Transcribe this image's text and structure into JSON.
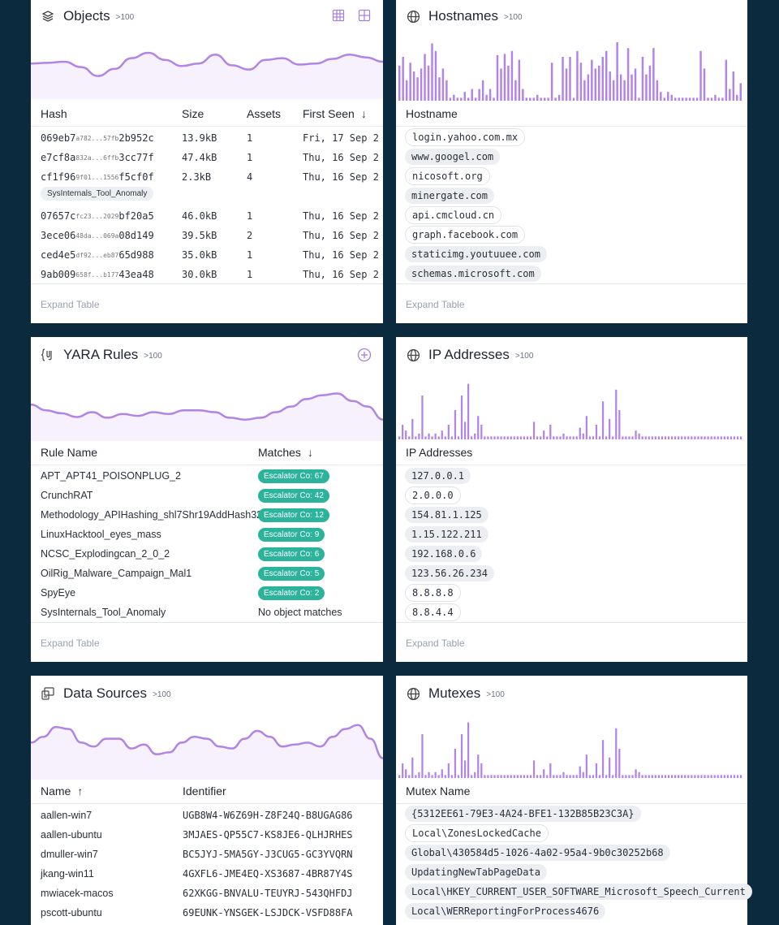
{
  "colors": {
    "accent": "#b184e6",
    "spark_fill": "#f6f1fc",
    "teal": "#2bb39b",
    "page_bg": "#0b2a3e"
  },
  "objects": {
    "title": "Objects",
    "count": ">100",
    "icons": [
      "layers-icon",
      "grid-icon",
      "grid-alt-icon"
    ],
    "columns": [
      "Hash",
      "Size",
      "Assets",
      "First Seen"
    ],
    "sort_column": "First Seen",
    "sort_dir": "down",
    "rows": [
      {
        "hash_pre": "069eb7",
        "hash_mid": "a782...57fb",
        "hash_post": "2b952c",
        "size": "13.9kB",
        "assets": "1",
        "first_seen": "Fri, 17 Sep 2",
        "tag": ""
      },
      {
        "hash_pre": "e7cf8a",
        "hash_mid": "832a...6ffb",
        "hash_post": "3cc77f",
        "size": "47.4kB",
        "assets": "1",
        "first_seen": "Thu, 16 Sep 2",
        "tag": ""
      },
      {
        "hash_pre": "cf1f96",
        "hash_mid": "9f01...1556",
        "hash_post": "f5cf0f",
        "size": "2.3kB",
        "assets": "4",
        "first_seen": "Thu, 16 Sep 2",
        "tag": "SysInternals_Tool_Anomaly"
      },
      {
        "hash_pre": "07657c",
        "hash_mid": "fc23...2029",
        "hash_post": "bf20a5",
        "size": "46.0kB",
        "assets": "1",
        "first_seen": "Thu, 16 Sep 2",
        "tag": ""
      },
      {
        "hash_pre": "3ece06",
        "hash_mid": "48da...069a",
        "hash_post": "08d149",
        "size": "39.5kB",
        "assets": "2",
        "first_seen": "Thu, 16 Sep 2",
        "tag": ""
      },
      {
        "hash_pre": "ced4e5",
        "hash_mid": "df92...eb87",
        "hash_post": "65d988",
        "size": "35.0kB",
        "assets": "1",
        "first_seen": "Thu, 16 Sep 2",
        "tag": ""
      },
      {
        "hash_pre": "9ab009",
        "hash_mid": "658f...b177",
        "hash_post": "43ea48",
        "size": "30.0kB",
        "assets": "1",
        "first_seen": "Thu, 16 Sep 2",
        "tag": ""
      }
    ],
    "expand": "Expand Table",
    "spark": [
      0.45,
      0.47,
      0.5,
      0.35,
      0.1,
      0.3,
      0.6,
      0.75,
      0.55,
      0.38,
      0.45,
      0.7,
      0.4,
      0.28,
      0.55,
      0.6,
      0.42,
      0.45,
      0.58,
      0.7,
      0.62,
      0.5
    ]
  },
  "hostnames": {
    "title": "Hostnames",
    "count": ">100",
    "icon": "globe-icon",
    "column": "Hostname",
    "items": [
      {
        "text": "login.yahoo.com.mx",
        "style": "outline"
      },
      {
        "text": "www.googel.com",
        "style": "filled"
      },
      {
        "text": "nicosoft.org",
        "style": "outline"
      },
      {
        "text": "minergate.com",
        "style": "filled"
      },
      {
        "text": "api.cmcloud.cn",
        "style": "outline"
      },
      {
        "text": "graph.facebook.com",
        "style": "outline"
      },
      {
        "text": "staticimg.youtuuee.com",
        "style": "filled"
      },
      {
        "text": "schemas.microsoft.com",
        "style": "filled"
      }
    ],
    "expand": "Expand Table",
    "bars": [
      0.6,
      0.75,
      0.35,
      0.65,
      0.5,
      0.4,
      0.55,
      0.8,
      0.6,
      0.98,
      0.85,
      0.4,
      0.55,
      0.35,
      0.05,
      0.1,
      0.05,
      0.05,
      0.15,
      0.05,
      0.2,
      0.05,
      0.2,
      0.35,
      0.1,
      0.2,
      0.05,
      0.78,
      0.55,
      0.8,
      0.6,
      0.85,
      0.35,
      0.7,
      0.2,
      0.05,
      0.05,
      0.05,
      0.1,
      0.05,
      0.05,
      0.05,
      0.65,
      0.05,
      0.1,
      0.75,
      0.55,
      0.75,
      0.05,
      0.85,
      0.65,
      0.35,
      0.45,
      0.7,
      0.55,
      0.6,
      0.75,
      0.85,
      0.5,
      0.35,
      1.0,
      0.45,
      0.35,
      0.9,
      0.45,
      0.55,
      0.05,
      0.75,
      0.45,
      0.6,
      0.9,
      0.35,
      0.15,
      0.05,
      0.15,
      0.1,
      0.05,
      0.05,
      0.05,
      0.05,
      0.05,
      0.05,
      0.05,
      0.85,
      0.55,
      0.05,
      0.05,
      0.1,
      0.05,
      0.05,
      0.7,
      0.2,
      0.5,
      0.1,
      0.3
    ]
  },
  "yara": {
    "title": "YARA Rules",
    "count": ">100",
    "icon": "yara-brackets-icon",
    "action_icon": "add-circle-icon",
    "columns": [
      "Rule Name",
      "Matches"
    ],
    "sort_column": "Matches",
    "sort_dir": "down",
    "rows": [
      {
        "name": "APT_APT41_POISONPLUG_2",
        "matches": "Escalator Co: 67"
      },
      {
        "name": "CrunchRAT",
        "matches": "Escalator Co: 42"
      },
      {
        "name": "Methodology_APIHashing_shl7Shr19AddHash32",
        "matches": "Escalator Co: 12"
      },
      {
        "name": "LinuxHacktool_eyes_mass",
        "matches": "Escalator Co: 9"
      },
      {
        "name": "NCSC_Explodingcan_2_0_2",
        "matches": "Escalator Co: 6"
      },
      {
        "name": "OilRig_Malware_Campaign_Mal1",
        "matches": "Escalator Co: 5"
      },
      {
        "name": "SpyEye",
        "matches": "Escalator Co: 2"
      },
      {
        "name": "SysInternals_Tool_Anomaly",
        "matches": "",
        "no_match": "No object matches"
      }
    ],
    "expand": "Expand Table",
    "spark": [
      0.45,
      0.3,
      0.22,
      0.12,
      0.25,
      0.1,
      0.2,
      0.15,
      0.25,
      0.2,
      0.3,
      0.3,
      0.25,
      0.1,
      0.05,
      0.1,
      0.25,
      0.4,
      0.6,
      0.7,
      0.75,
      0.55,
      0.4,
      0.05
    ]
  },
  "ip": {
    "title": "IP Addresses",
    "count": ">100",
    "icon": "globe-icon",
    "column": "IP Addresses",
    "items": [
      {
        "text": "127.0.0.1",
        "style": "filled"
      },
      {
        "text": "2.0.0.0",
        "style": "outline"
      },
      {
        "text": "154.81.1.125",
        "style": "filled"
      },
      {
        "text": "1.15.122.211",
        "style": "filled"
      },
      {
        "text": "192.168.0.6",
        "style": "filled"
      },
      {
        "text": "123.56.26.234",
        "style": "filled"
      },
      {
        "text": "8.8.8.8",
        "style": "outline"
      },
      {
        "text": "8.8.4.4",
        "style": "outline"
      }
    ],
    "expand": "Expand Table",
    "bars": [
      0.05,
      0.25,
      0.15,
      0.05,
      0.35,
      0.05,
      0.1,
      0.75,
      0.05,
      0.1,
      0.05,
      0.1,
      0.05,
      0.15,
      0.05,
      0.25,
      0.05,
      0.5,
      0.05,
      0.75,
      0.3,
      0.95,
      0.05,
      0.1,
      0.4,
      0.25,
      0.05,
      0.05,
      0.05,
      0.05,
      0.05,
      0.05,
      0.05,
      0.05,
      0.05,
      0.05,
      0.05,
      0.05,
      0.05,
      0.05,
      0.05,
      0.3,
      0.05,
      0.05,
      0.15,
      0.05,
      0.25,
      0.05,
      0.05,
      0.05,
      0.1,
      0.05,
      0.05,
      0.05,
      0.05,
      0.2,
      0.1,
      0.4,
      0.05,
      0.05,
      0.25,
      0.05,
      0.65,
      0.05,
      0.35,
      0.05,
      0.85,
      0.5,
      0.05,
      0.05,
      0.05,
      0.05,
      0.15,
      0.1,
      0.05,
      0.05,
      0.05,
      0.05,
      0.05,
      0.05,
      0.05,
      0.05,
      0.05,
      0.05,
      0.05,
      0.05,
      0.05,
      0.05,
      0.05,
      0.05,
      0.05,
      0.05,
      0.05,
      0.05,
      0.05,
      0.05,
      0.05,
      0.05,
      0.05,
      0.05,
      0.05,
      0.05,
      0.05,
      0.05,
      0.05
    ]
  },
  "sources": {
    "title": "Data Sources",
    "count": ">100",
    "icon": "data-source-icon",
    "columns": [
      "Name",
      "Identifier"
    ],
    "sort_column": "Name",
    "sort_dir": "up",
    "rows": [
      {
        "name": "aallen-win7",
        "id": "UGB8W4-W6Z69H-Z8F24Q-B8UGAG86"
      },
      {
        "name": "aallen-ubuntu",
        "id": "3MJAES-QP55C7-KS8JE6-QLHJRHES"
      },
      {
        "name": "dmuller-win7",
        "id": "BC5JYJ-5MA5GY-J3CUG5-GC3YVQRN"
      },
      {
        "name": "jkang-win11",
        "id": "4GXFL6-JME4EQ-XS3687-4BR87Y4S"
      },
      {
        "name": "mwiacek-macos",
        "id": "62XKGG-BNVALU-TEUYRJ-543QHFDJ"
      },
      {
        "name": "pscott-ubuntu",
        "id": "69EUNK-YNSGEK-LSJDCK-VSFD88FA"
      }
    ],
    "spark": [
      0.45,
      0.6,
      0.85,
      0.8,
      0.45,
      0.35,
      0.55,
      0.55,
      0.3,
      0.4,
      0.15,
      0.2,
      0.45,
      0.6,
      0.55,
      0.35,
      0.3,
      0.55,
      0.75,
      0.6,
      0.35,
      0.4,
      0.45,
      0.35,
      0.6,
      0.8,
      0.9,
      0.55,
      0.05
    ]
  },
  "mutexes": {
    "title": "Mutexes",
    "count": ">100",
    "icon": "globe-icon",
    "column": "Mutex Name",
    "items": [
      {
        "text": "{5312EE61-79E3-4A24-BFE1-132B85B23C3A}",
        "style": "filled"
      },
      {
        "text": "Local\\ZonesLockedCache",
        "style": "outline"
      },
      {
        "text": "Global\\430584d5-1026-4a02-95a4-9b0c30252b68",
        "style": "filled"
      },
      {
        "text": "UpdatingNewTabPageData",
        "style": "filled"
      },
      {
        "text": "Local\\HKEY_CURRENT_USER_SOFTWARE_Microsoft_Speech_Current",
        "style": "filled"
      },
      {
        "text": "Local\\WERReportingForProcess4676",
        "style": "filled"
      }
    ],
    "bars": [
      0.05,
      0.25,
      0.15,
      0.05,
      0.35,
      0.05,
      0.1,
      0.75,
      0.05,
      0.1,
      0.05,
      0.1,
      0.05,
      0.15,
      0.05,
      0.25,
      0.05,
      0.5,
      0.05,
      0.75,
      0.3,
      0.95,
      0.05,
      0.1,
      0.4,
      0.25,
      0.05,
      0.05,
      0.05,
      0.05,
      0.05,
      0.05,
      0.05,
      0.05,
      0.05,
      0.05,
      0.05,
      0.05,
      0.05,
      0.05,
      0.05,
      0.3,
      0.05,
      0.05,
      0.15,
      0.05,
      0.25,
      0.05,
      0.05,
      0.05,
      0.1,
      0.05,
      0.05,
      0.05,
      0.05,
      0.2,
      0.1,
      0.4,
      0.05,
      0.05,
      0.25,
      0.05,
      0.65,
      0.05,
      0.35,
      0.05,
      0.85,
      0.5,
      0.05,
      0.05,
      0.05,
      0.05,
      0.15,
      0.1,
      0.05,
      0.05,
      0.05,
      0.05,
      0.05,
      0.05,
      0.05,
      0.05,
      0.05,
      0.05,
      0.05,
      0.05,
      0.05,
      0.05,
      0.05,
      0.05,
      0.05,
      0.05,
      0.05,
      0.05,
      0.05,
      0.05,
      0.05,
      0.05,
      0.05,
      0.05,
      0.05,
      0.05,
      0.05,
      0.05,
      0.05
    ]
  }
}
